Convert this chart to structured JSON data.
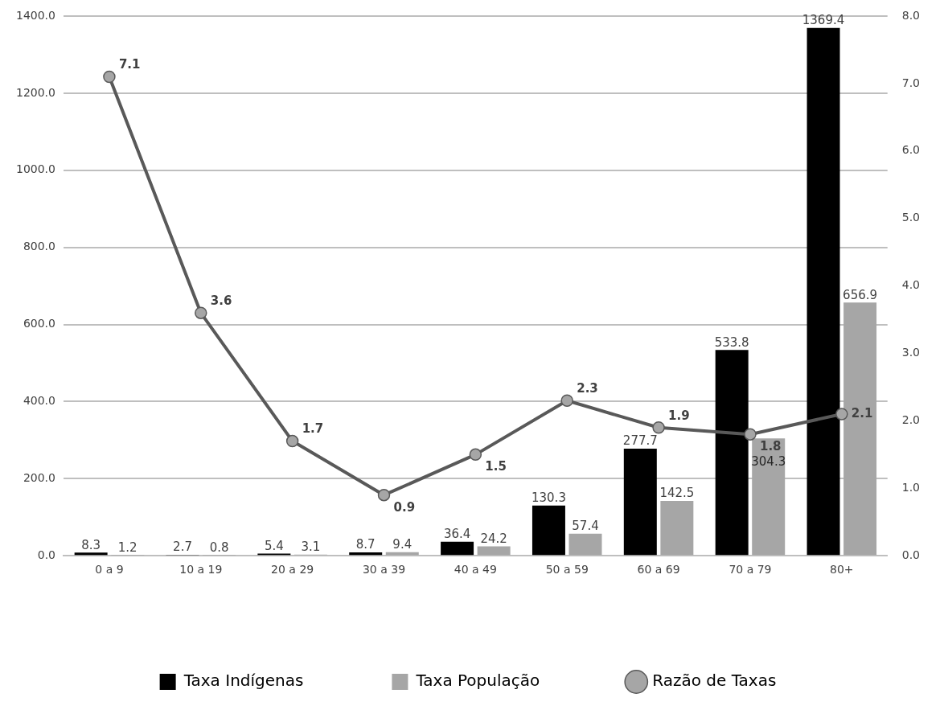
{
  "chart_data": {
    "type": "bar",
    "categories": [
      "0 a 9",
      "10 a 19",
      "20 a 29",
      "30 a 39",
      "40 a 49",
      "50 a 59",
      "60 a 69",
      "70 a 79",
      "80+"
    ],
    "series": [
      {
        "name": "Taxa Indígenas",
        "color": "#000000",
        "values": [
          8.3,
          2.7,
          5.4,
          8.7,
          36.4,
          130.3,
          277.7,
          533.8,
          1369.4
        ]
      },
      {
        "name": "Taxa População",
        "color": "#a6a6a6",
        "values": [
          1.2,
          0.8,
          3.1,
          9.4,
          24.2,
          57.4,
          142.5,
          304.3,
          656.9
        ]
      },
      {
        "name": "Razão de Taxas",
        "type": "line",
        "axis": "y2",
        "color": "#595959",
        "values": [
          7.1,
          3.6,
          1.7,
          0.9,
          1.5,
          2.3,
          1.9,
          1.8,
          2.1
        ]
      }
    ],
    "ylim": [
      0,
      1400
    ],
    "yticks": [
      {
        "value": 0,
        "label": "0.0"
      },
      {
        "value": 200,
        "label": "200.0"
      },
      {
        "value": 400,
        "label": "400.0"
      },
      {
        "value": 600,
        "label": "600.0"
      },
      {
        "value": 800,
        "label": "800.0"
      },
      {
        "value": 1000,
        "label": "1000.0"
      },
      {
        "value": 1200,
        "label": "1200.0"
      },
      {
        "value": 1400,
        "label": "1400.0"
      }
    ],
    "y2lim": [
      0,
      8
    ],
    "y2ticks": [
      {
        "value": 0,
        "label": "0.0"
      },
      {
        "value": 1,
        "label": "1.0"
      },
      {
        "value": 2,
        "label": "2.0"
      },
      {
        "value": 3,
        "label": "3.0"
      },
      {
        "value": 4,
        "label": "4.0"
      },
      {
        "value": 5,
        "label": "5.0"
      },
      {
        "value": 6,
        "label": "6.0"
      },
      {
        "value": 7,
        "label": "7.0"
      },
      {
        "value": 8,
        "label": "8.0"
      }
    ],
    "grid": "y",
    "legend": "bottom",
    "marker": "circle",
    "data_labels": true
  }
}
